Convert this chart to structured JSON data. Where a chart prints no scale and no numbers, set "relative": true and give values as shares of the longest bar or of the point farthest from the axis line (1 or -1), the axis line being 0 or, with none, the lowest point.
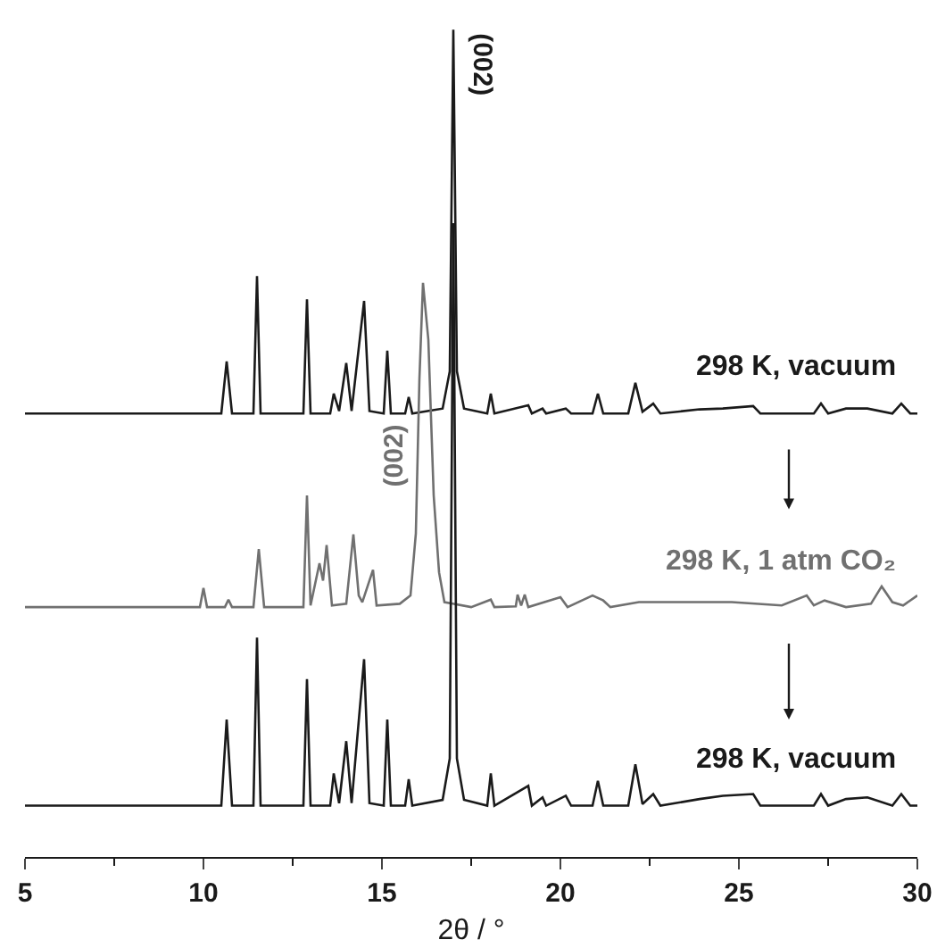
{
  "chart_data": {
    "type": "line",
    "relative": true,
    "xlabel": "2θ / °",
    "xlim": [
      5,
      30
    ],
    "xticks": [
      5,
      {
        "value": 7.5,
        "label": null
      },
      10,
      {
        "value": 12.5,
        "label": null
      },
      15,
      {
        "value": 17.5,
        "label": null
      },
      20,
      {
        "value": 22.5,
        "label": null
      },
      25,
      {
        "value": 27.5,
        "label": null
      },
      30
    ],
    "annotations": [
      {
        "text": "(002)",
        "x": 17.0,
        "y": 1.0
      },
      {
        "text": "(002)",
        "x": 16.0,
        "y": 0.485
      }
    ],
    "series": [
      {
        "name": "298 K, vacuum",
        "color": "#1a1a1a",
        "x": [
          5,
          10.5,
          10.65,
          10.8,
          11.4,
          11.5,
          11.6,
          12.8,
          12.9,
          13.0,
          13.55,
          13.65,
          13.8,
          14.0,
          14.15,
          14.5,
          14.65,
          15.05,
          15.15,
          15.25,
          15.65,
          15.75,
          15.85,
          16.7,
          16.9,
          17.0,
          17.1,
          17.3,
          17.95,
          18.05,
          18.15,
          19.1,
          19.2,
          19.5,
          19.6,
          20.15,
          20.3,
          20.9,
          21.05,
          21.2,
          21.9,
          22.1,
          22.3,
          22.6,
          22.8,
          23.9,
          24.55,
          25.4,
          25.6,
          27.1,
          27.3,
          27.5,
          28.0,
          28.6,
          29.3,
          29.55,
          29.8,
          30
        ],
        "values": [
          0.536,
          0.536,
          0.599,
          0.536,
          0.536,
          0.702,
          0.536,
          0.536,
          0.674,
          0.536,
          0.536,
          0.56,
          0.539,
          0.597,
          0.539,
          0.672,
          0.539,
          0.536,
          0.612,
          0.536,
          0.536,
          0.556,
          0.536,
          0.542,
          0.587,
          1.0,
          0.587,
          0.542,
          0.536,
          0.56,
          0.536,
          0.546,
          0.536,
          0.542,
          0.536,
          0.542,
          0.536,
          0.536,
          0.56,
          0.536,
          0.536,
          0.573,
          0.538,
          0.548,
          0.536,
          0.541,
          0.542,
          0.545,
          0.536,
          0.536,
          0.548,
          0.536,
          0.542,
          0.542,
          0.536,
          0.548,
          0.536,
          0.536
        ]
      },
      {
        "name": "298 K, 1 atm CO₂",
        "color": "#707070",
        "x": [
          5,
          9.9,
          10.0,
          10.1,
          10.6,
          10.7,
          10.8,
          11.4,
          11.55,
          11.7,
          12.8,
          12.9,
          13.0,
          13.25,
          13.35,
          13.45,
          13.6,
          14.0,
          14.2,
          14.35,
          14.45,
          14.75,
          14.85,
          15.5,
          15.8,
          15.95,
          16.05,
          16.15,
          16.3,
          16.45,
          16.6,
          16.75,
          17.5,
          18.05,
          18.15,
          18.75,
          18.8,
          18.9,
          19.0,
          19.1,
          20.0,
          20.2,
          20.9,
          21.2,
          21.4,
          22.2,
          23.9,
          24.4,
          24.8,
          26.2,
          26.9,
          27.1,
          27.4,
          28.0,
          28.7,
          29.0,
          29.3,
          29.6,
          30
        ],
        "values": [
          0.302,
          0.302,
          0.325,
          0.302,
          0.302,
          0.311,
          0.302,
          0.302,
          0.372,
          0.302,
          0.302,
          0.437,
          0.304,
          0.355,
          0.334,
          0.377,
          0.304,
          0.306,
          0.39,
          0.316,
          0.308,
          0.347,
          0.304,
          0.306,
          0.316,
          0.391,
          0.578,
          0.694,
          0.625,
          0.437,
          0.344,
          0.308,
          0.302,
          0.311,
          0.302,
          0.303,
          0.317,
          0.304,
          0.317,
          0.302,
          0.314,
          0.302,
          0.316,
          0.31,
          0.302,
          0.308,
          0.308,
          0.308,
          0.308,
          0.304,
          0.316,
          0.304,
          0.31,
          0.302,
          0.306,
          0.327,
          0.308,
          0.304,
          0.316
        ]
      },
      {
        "name": "298 K, vacuum",
        "color": "#1a1a1a",
        "x": [
          5,
          10.5,
          10.65,
          10.8,
          11.4,
          11.5,
          11.6,
          12.8,
          12.9,
          13.0,
          13.55,
          13.65,
          13.8,
          14.0,
          14.15,
          14.5,
          14.65,
          15.05,
          15.15,
          15.25,
          15.65,
          15.75,
          15.85,
          16.7,
          16.9,
          17.0,
          17.1,
          17.3,
          17.95,
          18.05,
          18.15,
          19.1,
          19.2,
          19.5,
          19.6,
          20.15,
          20.3,
          20.9,
          21.05,
          21.2,
          21.9,
          22.1,
          22.3,
          22.6,
          22.8,
          23.9,
          24.55,
          25.4,
          25.6,
          27.1,
          27.3,
          27.5,
          28.0,
          28.6,
          29.3,
          29.55,
          29.8,
          30
        ],
        "values": [
          0.062,
          0.062,
          0.166,
          0.062,
          0.062,
          0.265,
          0.062,
          0.062,
          0.215,
          0.062,
          0.062,
          0.101,
          0.065,
          0.14,
          0.065,
          0.239,
          0.065,
          0.062,
          0.166,
          0.062,
          0.062,
          0.094,
          0.062,
          0.069,
          0.119,
          0.766,
          0.119,
          0.069,
          0.062,
          0.101,
          0.062,
          0.086,
          0.062,
          0.072,
          0.062,
          0.074,
          0.062,
          0.062,
          0.092,
          0.062,
          0.062,
          0.112,
          0.064,
          0.076,
          0.062,
          0.07,
          0.074,
          0.076,
          0.062,
          0.062,
          0.076,
          0.062,
          0.07,
          0.072,
          0.062,
          0.076,
          0.062,
          0.062
        ]
      }
    ]
  }
}
